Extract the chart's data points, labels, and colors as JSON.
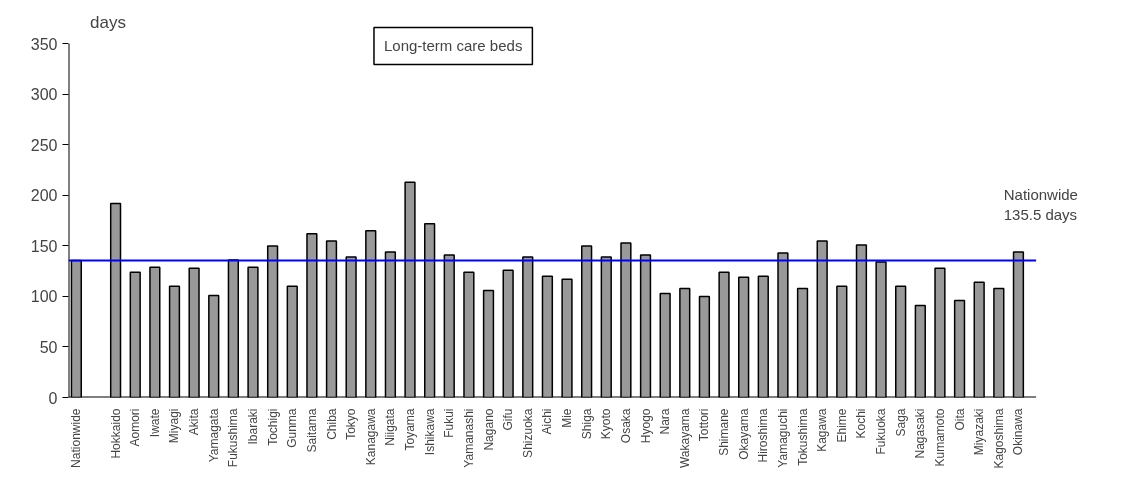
{
  "chart_data": {
    "type": "bar",
    "title": "Long-term care beds",
    "ylabel": "days",
    "categories": [
      "Nationwide",
      null,
      "Hokkaido",
      "Aomori",
      "Iwate",
      "Miyagi",
      "Akita",
      "Yamagata",
      "Fukushima",
      "Ibaraki",
      "Tochigi",
      "Gunma",
      "Saitama",
      "Chiba",
      "Tokyo",
      "Kanagawa",
      "Niigata",
      "Toyama",
      "Ishikawa",
      "Fukui",
      "Yamanashi",
      "Nagano",
      "Gifu",
      "Shizuoka",
      "Aichi",
      "Mie",
      "Shiga",
      "Kyoto",
      "Osaka",
      "Hyogo",
      "Nara",
      "Wakayama",
      "Tottori",
      "Shimane",
      "Okayama",
      "Hiroshima",
      "Yamaguchi",
      "Tokushima",
      "Kagawa",
      "Ehime",
      "Kochi",
      "Fukuoka",
      "Saga",
      "Nagasaki",
      "Kumamoto",
      "Oita",
      "Miyazaki",
      "Kagoshima",
      "Okinawa"
    ],
    "values": [
      135.5,
      null,
      192,
      124,
      129,
      110,
      128,
      101,
      136,
      129,
      150,
      110,
      162,
      155,
      139,
      165,
      144,
      213,
      172,
      141,
      124,
      106,
      126,
      139,
      120,
      117,
      150,
      139,
      153,
      141,
      103,
      108,
      100,
      124,
      119,
      120,
      143,
      108,
      155,
      110,
      151,
      134,
      110,
      91,
      128,
      96,
      114,
      108,
      144
    ],
    "color": "#999999",
    "ylim": [
      0,
      350
    ],
    "yticks": [
      0,
      50,
      100,
      150,
      200,
      250,
      300,
      350
    ],
    "ref_lines": [
      {
        "axis": "y",
        "value": 135.5,
        "label": "Nationwide\n135.5 days",
        "color": "#0000ff"
      }
    ],
    "grid": false
  }
}
